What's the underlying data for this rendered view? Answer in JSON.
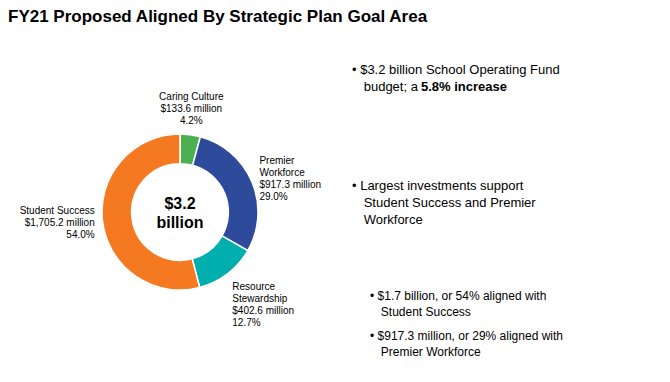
{
  "chart_data": {
    "type": "pie",
    "title": "FY21 Proposed Aligned By Strategic Plan Goal Area",
    "categories": [
      "Caring Culture\n$133.6 million\n4.2%",
      "Premier\nWorkforce\n$917.3 million\n29.0%",
      "Resource\nStewardship\n$402.6 million\n12.7%",
      "Student Success\n$1,705.2 million\n54.0%"
    ],
    "values": [
      4.2,
      29.0,
      12.7,
      54.0
    ],
    "colors": [
      "#4CAF50",
      "#2E4A9B",
      "#00AEAE",
      "#F47920"
    ],
    "annotations": [
      "$3.2\nbillion",
      "• $3.2 billion School Operating Fund\nbudget; a ",
      "5.8% increase",
      "• Largest investments support\nStudent Success and Premier\nWorkforce",
      "• $1.7 billion, or 54% aligned with\nStudent Success",
      "• $917.3 million, or 29% aligned with\nPremier Workforce"
    ]
  }
}
